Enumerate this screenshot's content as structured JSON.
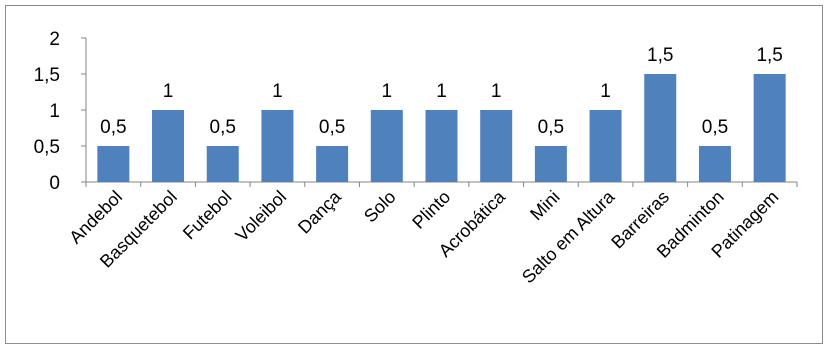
{
  "chart_data": {
    "type": "bar",
    "title": "",
    "xlabel": "",
    "ylabel": "",
    "categories": [
      "Andebol",
      "Basquetebol",
      "Futebol",
      "Voleibol",
      "Dança",
      "Solo",
      "Plinto",
      "Acrobática",
      "Mini",
      "Salto em Altura",
      "Barreiras",
      "Badminton",
      "Patinagem"
    ],
    "values": [
      0.5,
      1,
      0.5,
      1,
      0.5,
      1,
      1,
      1,
      0.5,
      1,
      1.5,
      0.5,
      1.5
    ],
    "data_labels": [
      "0,5",
      "1",
      "0,5",
      "1",
      "0,5",
      "1",
      "1",
      "1",
      "0,5",
      "1",
      "1,5",
      "0,5",
      "1,5"
    ],
    "ylim": [
      0,
      2
    ],
    "yticks": [
      0,
      0.5,
      1,
      1.5,
      2
    ],
    "ytick_labels": [
      "0",
      "0,5",
      "1",
      "1,5",
      "2"
    ],
    "grid": false,
    "legend": "none",
    "bar_color": "#4f81bd"
  }
}
